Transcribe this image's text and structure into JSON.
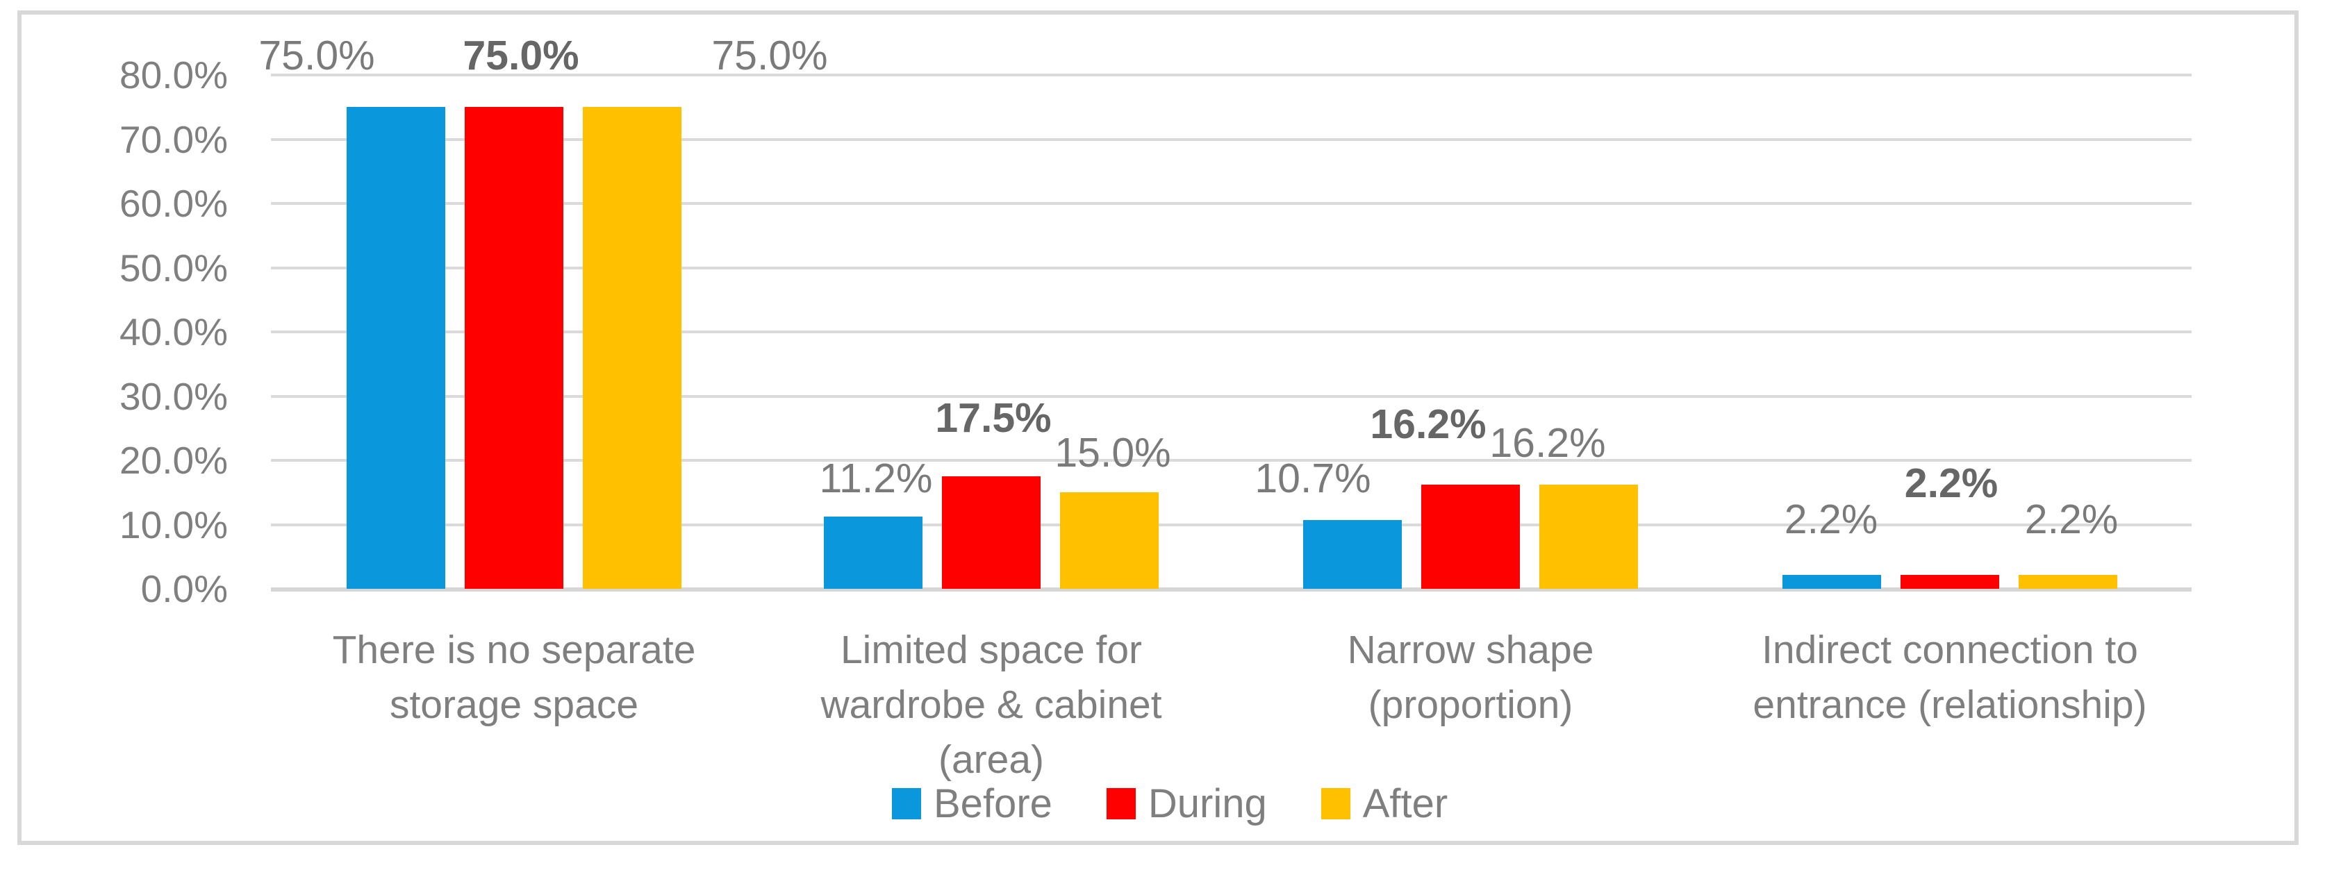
{
  "chart_data": {
    "type": "bar",
    "title": "",
    "categories": [
      "There is no separate\nstorage space",
      "Limited space for\nwardrobe & cabinet\n(area)",
      "Narrow shape\n(proportion)",
      "Indirect connection to\nentrance (relationship)"
    ],
    "series": [
      {
        "name": "Before",
        "color": "#0A97DB",
        "values": [
          75.0,
          11.2,
          10.7,
          2.2
        ],
        "labels": [
          "75.0%",
          "11.2%",
          "10.7%",
          "2.2%"
        ],
        "bold_labels": false
      },
      {
        "name": "During",
        "color": "#FE0000",
        "values": [
          75.0,
          17.5,
          16.2,
          2.2
        ],
        "labels": [
          "75.0%",
          "17.5%",
          "16.2%",
          "2.2%"
        ],
        "bold_labels": true
      },
      {
        "name": "After",
        "color": "#FFC000",
        "values": [
          75.0,
          15.0,
          16.2,
          2.2
        ],
        "labels": [
          "75.0%",
          "15.0%",
          "16.2%",
          "2.2%"
        ],
        "bold_labels": false
      }
    ],
    "y_axis": {
      "min": 0,
      "max": 80,
      "step": 10,
      "ticks": [
        "0.0%",
        "10.0%",
        "20.0%",
        "30.0%",
        "40.0%",
        "50.0%",
        "60.0%",
        "70.0%",
        "80.0%"
      ]
    },
    "legend": {
      "position": "bottom-center",
      "entries": [
        "Before",
        "During",
        "After"
      ]
    },
    "grid": true
  },
  "colors": {
    "before": "#0A97DB",
    "during": "#FE0000",
    "after": "#FFC000",
    "gridline": "#DADADA",
    "axis_line": "#D6D6D6",
    "frame_border": "#D8D8D8",
    "text": "#7F7F7F",
    "data_label": "#7A7A7A",
    "data_label_bold": "#666666",
    "background": "#FFFFFF"
  }
}
